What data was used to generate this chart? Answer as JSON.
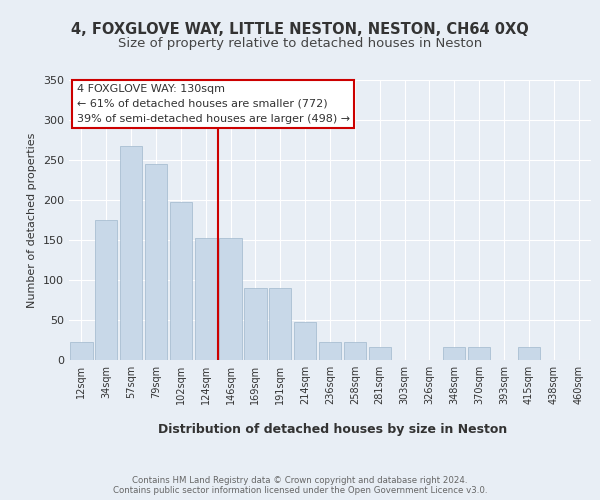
{
  "title_line1": "4, FOXGLOVE WAY, LITTLE NESTON, NESTON, CH64 0XQ",
  "title_line2": "Size of property relative to detached houses in Neston",
  "xlabel": "Distribution of detached houses by size in Neston",
  "ylabel": "Number of detached properties",
  "footnote": "Contains HM Land Registry data © Crown copyright and database right 2024.\nContains public sector information licensed under the Open Government Licence v3.0.",
  "bar_labels": [
    "12sqm",
    "34sqm",
    "57sqm",
    "79sqm",
    "102sqm",
    "124sqm",
    "146sqm",
    "169sqm",
    "191sqm",
    "214sqm",
    "236sqm",
    "258sqm",
    "281sqm",
    "303sqm",
    "326sqm",
    "348sqm",
    "370sqm",
    "393sqm",
    "415sqm",
    "438sqm",
    "460sqm"
  ],
  "bar_values": [
    22,
    175,
    268,
    245,
    198,
    153,
    153,
    90,
    90,
    47,
    23,
    23,
    16,
    0,
    0,
    16,
    16,
    0,
    16,
    0,
    0
  ],
  "bar_color": "#c8d8e8",
  "bar_edgecolor": "#a0b8cc",
  "annotation_box_text": "4 FOXGLOVE WAY: 130sqm\n← 61% of detached houses are smaller (772)\n39% of semi-detached houses are larger (498) →",
  "vline_x": 5.5,
  "vline_color": "#cc0000",
  "background_color": "#e8eef5",
  "plot_background": "#e8eef5",
  "ylim": [
    0,
    350
  ],
  "yticks": [
    0,
    50,
    100,
    150,
    200,
    250,
    300,
    350
  ],
  "grid_color": "#ffffff",
  "title_fontsize": 10.5,
  "subtitle_fontsize": 9.5
}
